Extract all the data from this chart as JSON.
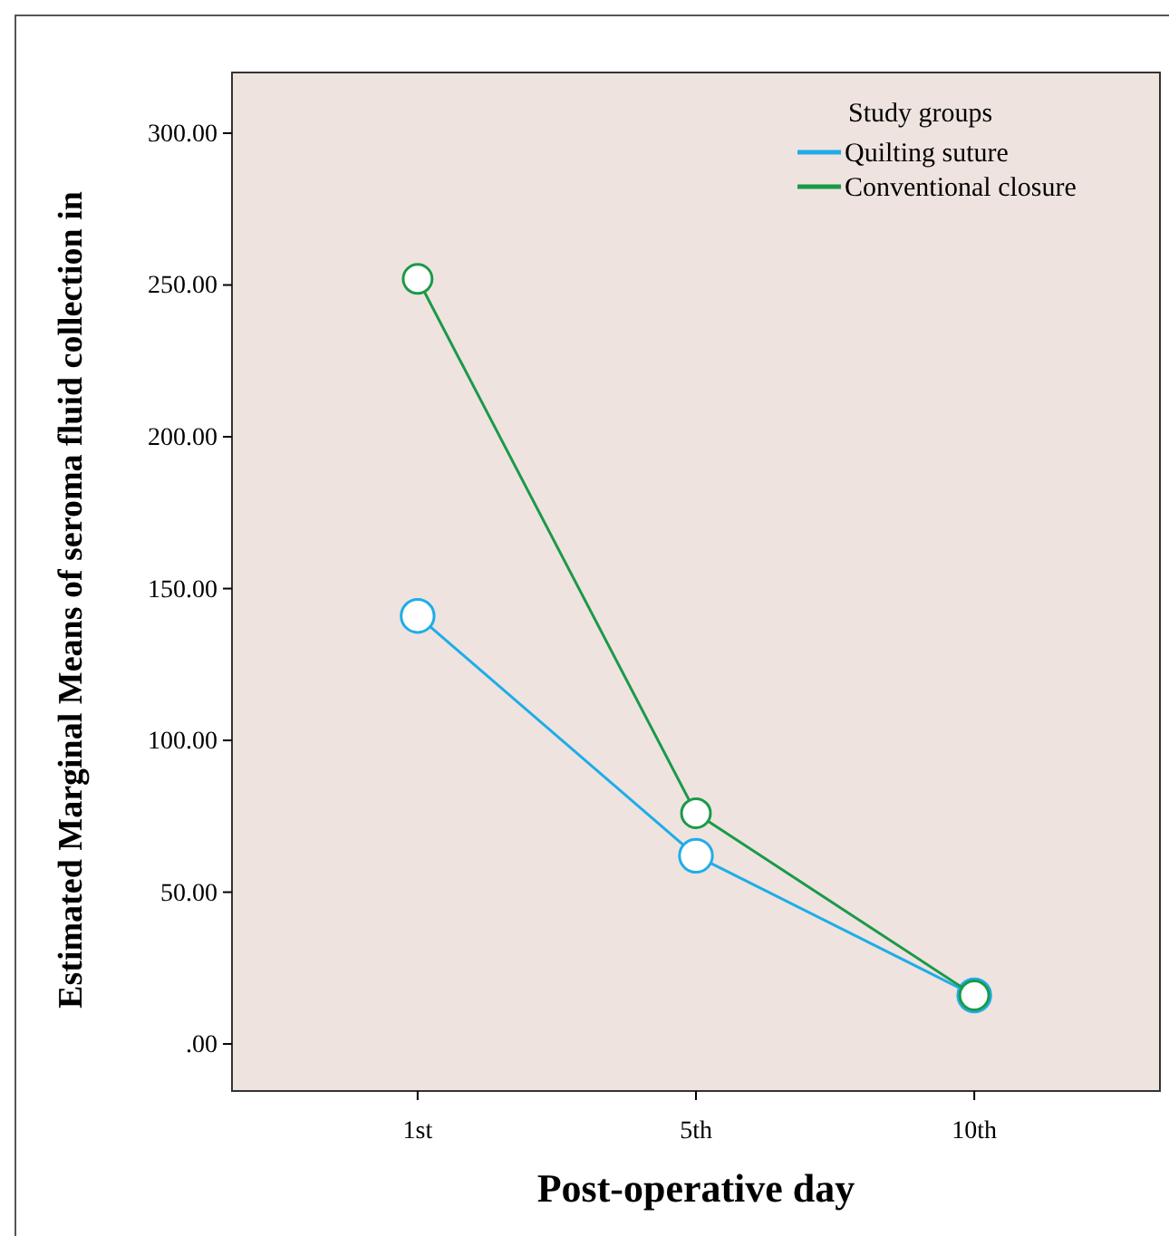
{
  "chart_data": {
    "type": "line",
    "xlabel": "Post-operative day",
    "ylabel": "Estimated Marginal Means of seroma fluid collection in",
    "legend_title": "Study groups",
    "legend": "top right",
    "marker": "circle",
    "line_style": "solid",
    "grid": false,
    "categories": [
      "1st",
      "5th",
      "10th"
    ],
    "ylim": [
      -15.5,
      320
    ],
    "yticks": [
      {
        "value": 0,
        "label": ".00"
      },
      {
        "value": 50,
        "label": "50.00"
      },
      {
        "value": 100,
        "label": "100.00"
      },
      {
        "value": 150,
        "label": "150.00"
      },
      {
        "value": 200,
        "label": "200.00"
      },
      {
        "value": 250,
        "label": "250.00"
      },
      {
        "value": 300,
        "label": "300.00"
      }
    ],
    "series": [
      {
        "name": "Quilting suture",
        "color": "#1fade8",
        "values": [
          141,
          62,
          16
        ]
      },
      {
        "name": "Conventional closure",
        "color": "#1a9a48",
        "values": [
          252,
          76,
          16
        ]
      }
    ]
  }
}
